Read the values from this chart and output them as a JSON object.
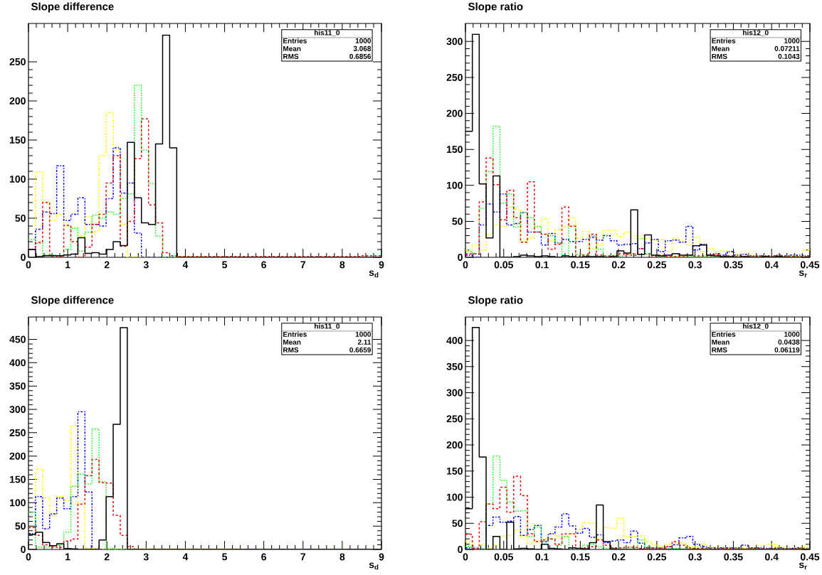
{
  "chart_data": [
    {
      "type": "histogram",
      "title": "Slope difference",
      "xlabel": "s$_{d}$",
      "xlim": [
        0,
        9
      ],
      "ylim": [
        0,
        299
      ],
      "xticks": [
        0,
        1,
        2,
        3,
        4,
        5,
        6,
        7,
        8,
        9
      ],
      "yticks": [
        0,
        50,
        100,
        150,
        200,
        250
      ],
      "annotations": [
        "his11_0",
        "Entries",
        "1000",
        "Mean",
        "3.068",
        "RMS",
        "0.6856"
      ],
      "bins": [
        0,
        0.18,
        0.36,
        0.54,
        0.72,
        0.9,
        1.08,
        1.26,
        1.44,
        1.62,
        1.8,
        1.98,
        2.16,
        2.34,
        2.52,
        2.7,
        2.88,
        3.06,
        3.24,
        3.42,
        3.6,
        3.78,
        3.96,
        4.14,
        4.32,
        4.5,
        4.68,
        4.86,
        5.04,
        5.22,
        5.4,
        5.58,
        5.76,
        5.94,
        6.12,
        6.3,
        6.48,
        6.66,
        6.84,
        7.02,
        7.2,
        7.38,
        7.56,
        7.74,
        7.92,
        8.1,
        8.28,
        8.46,
        8.64,
        8.82,
        9
      ],
      "series": [
        {
          "color": "#ffff00",
          "line_style": "dashdot",
          "values": [
            10,
            109,
            71,
            47,
            55,
            40,
            38,
            27,
            52,
            33,
            130,
            185,
            137,
            42,
            0,
            0,
            0,
            0,
            0,
            0,
            0,
            1,
            1,
            0,
            1,
            0,
            1,
            0,
            1,
            0,
            0,
            0,
            0,
            0,
            0,
            0,
            0,
            0,
            0,
            0,
            0,
            0,
            0,
            0,
            0,
            0,
            0,
            0,
            0,
            0
          ]
        },
        {
          "color": "#0000ff",
          "line_style": "dashdot",
          "values": [
            10,
            36,
            58,
            56,
            117,
            47,
            55,
            76,
            42,
            42,
            40,
            75,
            140,
            82,
            95,
            31,
            0,
            0,
            0,
            0,
            0,
            0,
            0,
            0,
            0,
            0,
            0,
            0,
            0,
            0,
            0,
            0,
            0,
            0,
            0,
            0,
            0,
            0,
            0,
            0,
            0,
            0,
            0,
            0,
            0,
            0,
            0,
            0,
            0,
            0
          ]
        },
        {
          "color": "#00ff00",
          "line_style": "dotted",
          "values": [
            23,
            18,
            3,
            3,
            2,
            10,
            37,
            8,
            32,
            54,
            50,
            58,
            55,
            75,
            81,
            220,
            137,
            94,
            27,
            0,
            0,
            0,
            0,
            0,
            0,
            0,
            0,
            0,
            0,
            0,
            0,
            0,
            0,
            0,
            0,
            0,
            0,
            0,
            0,
            0,
            0,
            0,
            0,
            0,
            0,
            0,
            0,
            0,
            0,
            0
          ]
        },
        {
          "color": "#ff0000",
          "line_style": "dashed",
          "values": [
            10,
            19,
            70,
            2,
            1,
            41,
            20,
            0,
            13,
            42,
            55,
            95,
            130,
            14,
            46,
            126,
            177,
            67,
            44,
            6,
            2,
            1,
            1,
            1,
            1,
            1,
            1,
            1,
            1,
            1,
            1,
            1,
            1,
            1,
            1,
            1,
            1,
            1,
            1,
            1,
            1,
            1,
            1,
            1,
            1,
            1,
            1,
            2,
            2,
            2
          ]
        },
        {
          "color": "#000000",
          "line_style": "solid",
          "values": [
            10,
            1,
            2,
            2,
            2,
            3,
            4,
            25,
            5,
            6,
            4,
            10,
            20,
            15,
            147,
            76,
            44,
            42,
            145,
            284,
            140,
            0,
            0,
            0,
            0,
            0,
            0,
            0,
            0,
            0,
            0,
            0,
            0,
            0,
            0,
            0,
            0,
            0,
            0,
            0,
            0,
            0,
            0,
            0,
            0,
            0,
            0,
            0,
            0,
            0
          ]
        }
      ]
    },
    {
      "type": "histogram",
      "title": "Slope ratio",
      "xlabel": "s$_{r}$",
      "xlim": [
        0,
        0.45
      ],
      "ylim": [
        0,
        325
      ],
      "xticks": [
        0,
        0.05,
        0.1,
        0.15,
        0.2,
        0.25,
        0.3,
        0.35,
        0.4,
        0.45
      ],
      "yticks": [
        0,
        50,
        100,
        150,
        200,
        250,
        300
      ],
      "annotations": [
        "his12_0",
        "Entries",
        "1000",
        "Mean",
        "0.07211",
        "RMS",
        "0.1043"
      ],
      "bins": [
        0,
        0.009,
        0.018,
        0.027,
        0.036,
        0.045,
        0.054,
        0.063,
        0.072,
        0.081,
        0.09,
        0.099,
        0.108,
        0.117,
        0.126,
        0.135,
        0.144,
        0.153,
        0.162,
        0.171,
        0.18,
        0.189,
        0.198,
        0.207,
        0.216,
        0.225,
        0.234,
        0.243,
        0.252,
        0.261,
        0.27,
        0.279,
        0.288,
        0.297,
        0.306,
        0.315,
        0.324,
        0.333,
        0.342,
        0.351,
        0.36,
        0.369,
        0.378,
        0.387,
        0.396,
        0.405,
        0.414,
        0.423,
        0.432,
        0.441,
        0.45
      ],
      "series": [
        {
          "color": "#ffff00",
          "line_style": "dashdot",
          "values": [
            10,
            18,
            10,
            32,
            45,
            43,
            70,
            67,
            22,
            27,
            42,
            53,
            23,
            38,
            42,
            55,
            27,
            36,
            12,
            18,
            37,
            37,
            29,
            35,
            30,
            30,
            26,
            24,
            25,
            8,
            27,
            22,
            17,
            28,
            8,
            12,
            8,
            9,
            7,
            4,
            5,
            3,
            2,
            2,
            2,
            3,
            2,
            3,
            2,
            10
          ]
        },
        {
          "color": "#0000ff",
          "line_style": "dashdot",
          "values": [
            3,
            0,
            45,
            74,
            63,
            88,
            45,
            47,
            62,
            35,
            35,
            17,
            33,
            20,
            25,
            22,
            22,
            25,
            28,
            24,
            30,
            23,
            17,
            18,
            19,
            12,
            20,
            25,
            8,
            23,
            24,
            21,
            43,
            10,
            18,
            3,
            5,
            3,
            8,
            3,
            4,
            2,
            2,
            2,
            2,
            3,
            2,
            3,
            3,
            2
          ]
        },
        {
          "color": "#00ff00",
          "line_style": "dotted",
          "values": [
            8,
            5,
            68,
            119,
            182,
            75,
            88,
            42,
            62,
            55,
            43,
            32,
            30,
            20,
            3,
            44,
            4,
            3,
            30,
            11,
            2,
            3,
            2,
            3,
            5,
            26,
            4,
            3,
            1,
            1,
            1,
            1,
            2,
            1,
            1,
            1,
            1,
            1,
            1,
            1,
            1,
            1,
            1,
            1,
            1,
            1,
            1,
            1,
            1,
            1
          ]
        },
        {
          "color": "#ff0000",
          "line_style": "dashed",
          "values": [
            5,
            5,
            77,
            138,
            101,
            52,
            93,
            55,
            21,
            105,
            35,
            32,
            11,
            18,
            70,
            43,
            2,
            3,
            32,
            3,
            2,
            2,
            5,
            4,
            3,
            12,
            5,
            2,
            3,
            1,
            1,
            1,
            3,
            2,
            2,
            2,
            4,
            1,
            2,
            1,
            1,
            1,
            2,
            1,
            1,
            2,
            1,
            1,
            1,
            1
          ]
        },
        {
          "color": "#000000",
          "line_style": "solid",
          "values": [
            175,
            310,
            102,
            27,
            113,
            0,
            0,
            1,
            3,
            2,
            1,
            2,
            1,
            0,
            2,
            1,
            0,
            1,
            1,
            1,
            0,
            1,
            9,
            6,
            66,
            4,
            31,
            3,
            2,
            3,
            5,
            3,
            3,
            16,
            17,
            3,
            2,
            1,
            1,
            0,
            1,
            0,
            0,
            1,
            0,
            1,
            0,
            0,
            0,
            0
          ]
        }
      ]
    },
    {
      "type": "histogram",
      "title": "Slope difference",
      "xlabel": "s$_{d}$",
      "xlim": [
        0,
        9
      ],
      "ylim": [
        0,
        498
      ],
      "xticks": [
        0,
        1,
        2,
        3,
        4,
        5,
        6,
        7,
        8,
        9
      ],
      "yticks": [
        0,
        50,
        100,
        150,
        200,
        250,
        300,
        350,
        400,
        450
      ],
      "annotations": [
        "his11_0",
        "Entries",
        "1000",
        "Mean",
        "2.11",
        "RMS",
        "0.6659"
      ],
      "bins": [
        0,
        0.18,
        0.36,
        0.54,
        0.72,
        0.9,
        1.08,
        1.26,
        1.44,
        1.62,
        1.8,
        1.98,
        2.16,
        2.34,
        2.52,
        2.7,
        2.88,
        3.06,
        3.24,
        3.42,
        3.6,
        3.78,
        3.96,
        4.14,
        4.32,
        4.5,
        4.68,
        4.86,
        5.04,
        5.22,
        5.4,
        5.58,
        5.76,
        5.94,
        6.12,
        6.3,
        6.48,
        6.66,
        6.84,
        7.02,
        7.2,
        7.38,
        7.56,
        7.74,
        7.92,
        8.1,
        8.28,
        8.46,
        8.64,
        8.82,
        9
      ],
      "series": [
        {
          "color": "#ffff00",
          "line_style": "dashdot",
          "values": [
            47,
            172,
            111,
            73,
            113,
            105,
            265,
            97,
            3,
            3,
            1,
            1,
            1,
            1,
            1,
            1,
            1,
            1,
            1,
            1,
            1,
            1,
            1,
            1,
            1,
            1,
            1,
            1,
            1,
            1,
            0,
            0,
            0,
            0,
            0,
            0,
            0,
            0,
            0,
            0,
            0,
            0,
            0,
            0,
            0,
            0,
            0,
            0,
            0,
            0
          ]
        },
        {
          "color": "#0000ff",
          "line_style": "dashdot",
          "values": [
            34,
            113,
            44,
            76,
            110,
            87,
            113,
            295,
            123,
            0,
            0,
            0,
            0,
            0,
            0,
            0,
            0,
            0,
            0,
            0,
            0,
            0,
            0,
            0,
            0,
            0,
            0,
            0,
            0,
            0,
            0,
            0,
            0,
            0,
            0,
            0,
            0,
            0,
            0,
            0,
            0,
            0,
            0,
            0,
            0,
            0,
            0,
            0,
            0,
            0
          ]
        },
        {
          "color": "#00ff00",
          "line_style": "dotted",
          "values": [
            80,
            5,
            5,
            8,
            10,
            37,
            135,
            161,
            140,
            258,
            145,
            2,
            0,
            0,
            0,
            0,
            0,
            0,
            0,
            0,
            0,
            0,
            0,
            0,
            0,
            0,
            0,
            0,
            0,
            0,
            0,
            0,
            0,
            0,
            0,
            0,
            0,
            0,
            0,
            0,
            0,
            0,
            0,
            0,
            0,
            0,
            0,
            0,
            0,
            0
          ]
        },
        {
          "color": "#ff0000",
          "line_style": "dashed",
          "values": [
            47,
            30,
            10,
            5,
            4,
            18,
            22,
            97,
            158,
            193,
            143,
            142,
            73,
            30,
            6,
            0,
            0,
            0,
            0,
            0,
            0,
            0,
            0,
            0,
            0,
            0,
            0,
            0,
            0,
            0,
            0,
            0,
            0,
            0,
            0,
            0,
            0,
            0,
            0,
            0,
            0,
            0,
            0,
            0,
            0,
            0,
            0,
            0,
            0,
            0
          ]
        },
        {
          "color": "#000000",
          "line_style": "solid",
          "values": [
            32,
            37,
            15,
            8,
            12,
            2,
            1,
            0,
            0,
            0,
            20,
            113,
            268,
            475,
            0,
            0,
            0,
            0,
            0,
            0,
            0,
            0,
            0,
            0,
            0,
            0,
            0,
            0,
            0,
            0,
            0,
            0,
            0,
            0,
            0,
            0,
            0,
            0,
            0,
            0,
            0,
            0,
            0,
            0,
            0,
            0,
            0,
            0,
            0,
            0
          ]
        }
      ]
    },
    {
      "type": "histogram",
      "title": "Slope ratio",
      "xlabel": "s$_{r}$",
      "xlim": [
        0,
        0.45
      ],
      "ylim": [
        0,
        445
      ],
      "xticks": [
        0,
        0.05,
        0.1,
        0.15,
        0.2,
        0.25,
        0.3,
        0.35,
        0.4,
        0.45
      ],
      "yticks": [
        0,
        50,
        100,
        150,
        200,
        250,
        300,
        350,
        400
      ],
      "annotations": [
        "his12_0",
        "Entries",
        "1000",
        "Mean",
        "0.0438",
        "RMS",
        "0.06119"
      ],
      "bins": [
        0,
        0.009,
        0.018,
        0.027,
        0.036,
        0.045,
        0.054,
        0.063,
        0.072,
        0.081,
        0.09,
        0.099,
        0.108,
        0.117,
        0.126,
        0.135,
        0.144,
        0.153,
        0.162,
        0.171,
        0.18,
        0.189,
        0.198,
        0.207,
        0.216,
        0.225,
        0.234,
        0.243,
        0.252,
        0.261,
        0.27,
        0.279,
        0.288,
        0.297,
        0.306,
        0.315,
        0.324,
        0.333,
        0.342,
        0.351,
        0.36,
        0.369,
        0.378,
        0.387,
        0.396,
        0.405,
        0.414,
        0.423,
        0.432,
        0.441,
        0.45
      ],
      "series": [
        {
          "color": "#ffff00",
          "line_style": "dashdot",
          "values": [
            15,
            3,
            8,
            3,
            8,
            26,
            27,
            37,
            24,
            11,
            16,
            20,
            30,
            26,
            25,
            30,
            38,
            52,
            50,
            20,
            42,
            40,
            60,
            25,
            25,
            26,
            15,
            8,
            5,
            10,
            11,
            12,
            5,
            5,
            10,
            4,
            4,
            3,
            3,
            3,
            4,
            3,
            8,
            8,
            10,
            5,
            3,
            3,
            2,
            6
          ]
        },
        {
          "color": "#0000ff",
          "line_style": "dashdot",
          "values": [
            3,
            0,
            0,
            46,
            62,
            52,
            54,
            63,
            27,
            38,
            46,
            15,
            30,
            43,
            68,
            45,
            31,
            40,
            23,
            28,
            13,
            16,
            18,
            13,
            35,
            12,
            3,
            3,
            3,
            5,
            9,
            22,
            25,
            10,
            5,
            3,
            3,
            3,
            3,
            3,
            8,
            3,
            3,
            2,
            2,
            3,
            2,
            2,
            3,
            2
          ]
        },
        {
          "color": "#00ff00",
          "line_style": "dotted",
          "values": [
            5,
            3,
            2,
            87,
            179,
            132,
            91,
            73,
            74,
            25,
            43,
            15,
            20,
            8,
            25,
            3,
            2,
            8,
            10,
            5,
            2,
            3,
            3,
            4,
            3,
            18,
            5,
            3,
            3,
            2,
            2,
            1,
            2,
            1,
            1,
            1,
            1,
            1,
            1,
            1,
            1,
            1,
            1,
            1,
            1,
            1,
            1,
            1,
            1,
            1
          ]
        },
        {
          "color": "#ff0000",
          "line_style": "dashed",
          "values": [
            29,
            2,
            53,
            87,
            78,
            119,
            71,
            140,
            103,
            30,
            15,
            18,
            20,
            10,
            30,
            30,
            2,
            3,
            5,
            18,
            8,
            3,
            3,
            4,
            4,
            2,
            3,
            3,
            2,
            5,
            15,
            8,
            3,
            2,
            2,
            1,
            1,
            2,
            3,
            1,
            1,
            2,
            2,
            1,
            2,
            1,
            1,
            1,
            2,
            1
          ]
        },
        {
          "color": "#000000",
          "line_style": "solid",
          "values": [
            78,
            425,
            177,
            0,
            25,
            0,
            52,
            1,
            2,
            1,
            0,
            10,
            2,
            1,
            0,
            3,
            2,
            1,
            13,
            85,
            15,
            1,
            0,
            0,
            0,
            0,
            0,
            0,
            0,
            0,
            0,
            0,
            0,
            0,
            0,
            0,
            0,
            0,
            0,
            0,
            0,
            0,
            0,
            0,
            0,
            0,
            0,
            0,
            0,
            0
          ]
        }
      ]
    }
  ]
}
